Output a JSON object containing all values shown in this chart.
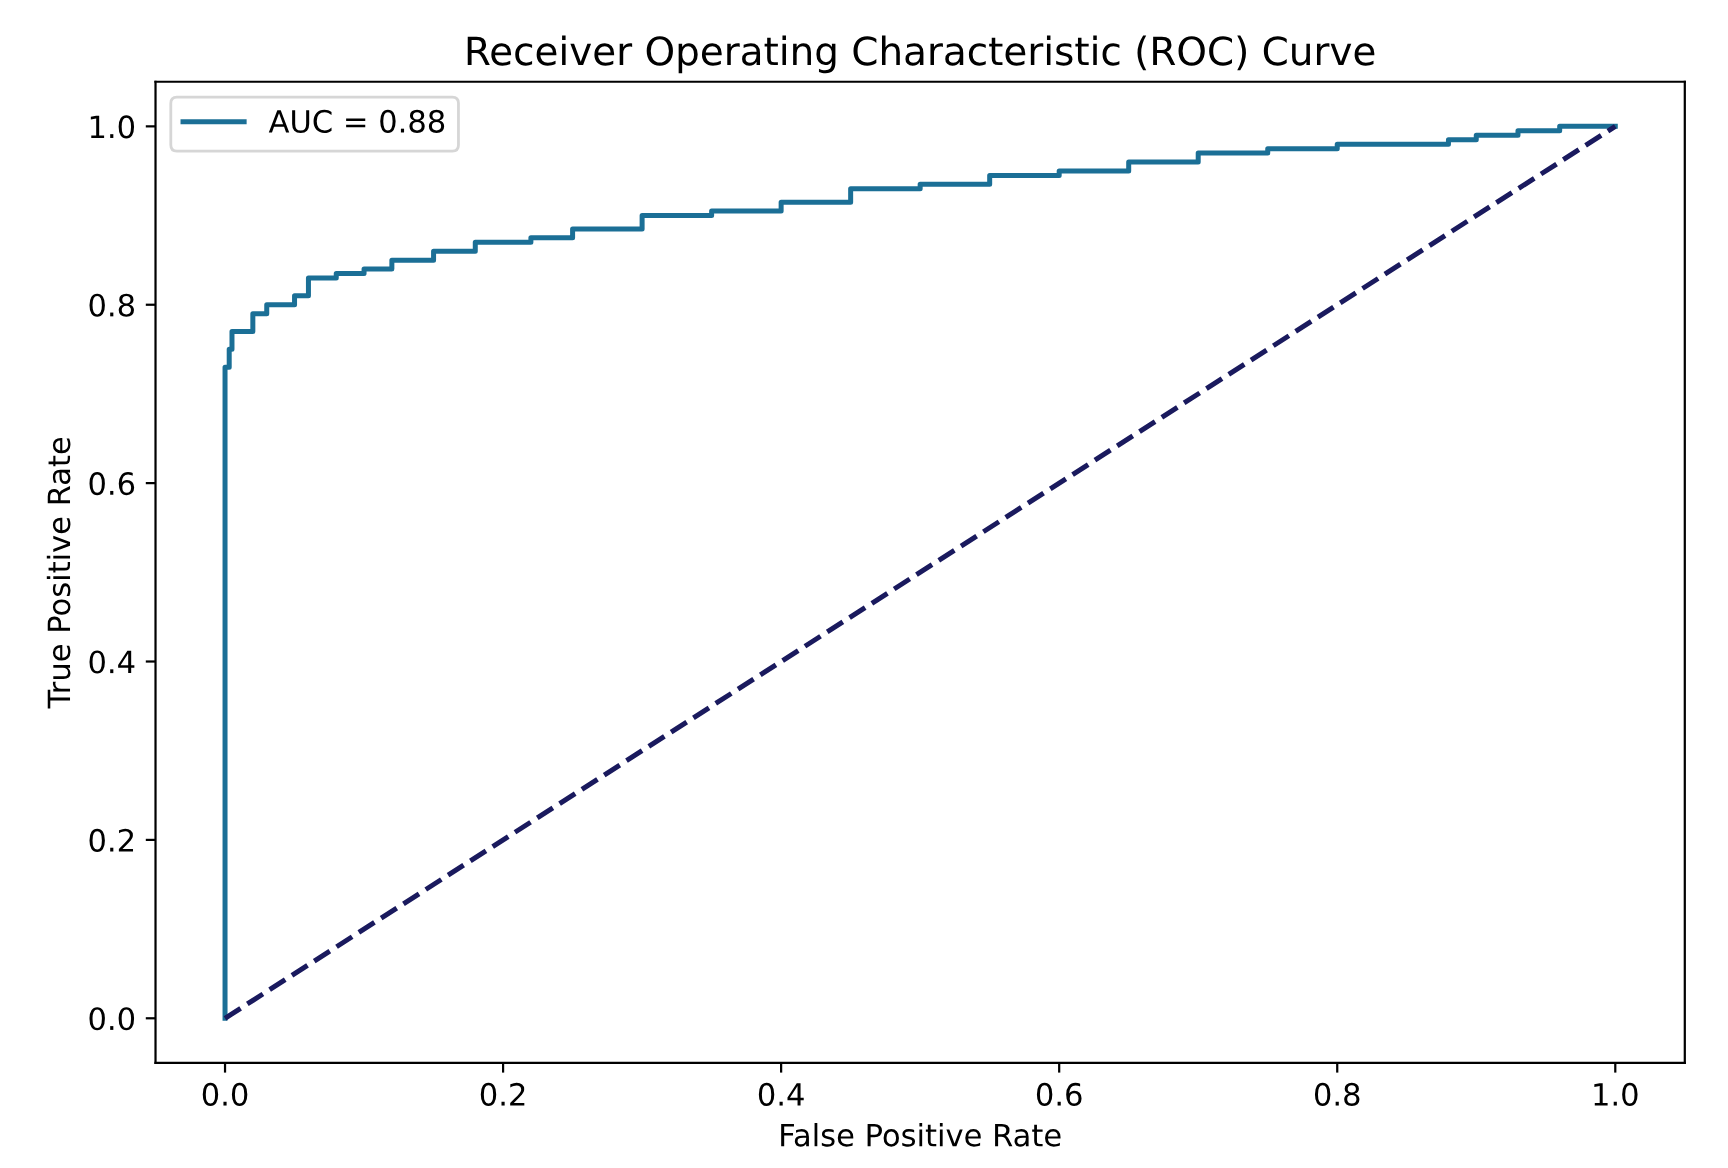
{
  "chart_data": {
    "type": "line",
    "title": "Receiver Operating Characteristic (ROC) Curve",
    "xlabel": "False Positive Rate",
    "ylabel": "True Positive Rate",
    "xlim": [
      -0.05,
      1.05
    ],
    "ylim": [
      -0.05,
      1.05
    ],
    "xticks": [
      {
        "value": 0,
        "label": "0.0"
      },
      0.2,
      0.4,
      0.6,
      0.8,
      {
        "value": 1,
        "label": "1.0"
      }
    ],
    "yticks": [
      {
        "value": 0,
        "label": "0.0"
      },
      0.2,
      0.4,
      0.6,
      0.8,
      {
        "value": 1,
        "label": "1.0"
      }
    ],
    "grid": false,
    "legend": "top left",
    "series": [
      {
        "name": "AUC = 0.88",
        "type": "step",
        "color": "#1b6f96",
        "line_style": "solid",
        "x": [
          0,
          0,
          0.003,
          0.005,
          0.02,
          0.03,
          0.05,
          0.06,
          0.08,
          0.1,
          0.12,
          0.15,
          0.18,
          0.22,
          0.25,
          0.3,
          0.35,
          0.4,
          0.45,
          0.5,
          0.55,
          0.6,
          0.65,
          0.7,
          0.75,
          0.8,
          0.88,
          0.9,
          0.93,
          0.96,
          1.0
        ],
        "values": [
          0,
          0.73,
          0.75,
          0.77,
          0.79,
          0.8,
          0.81,
          0.83,
          0.835,
          0.84,
          0.85,
          0.86,
          0.87,
          0.875,
          0.885,
          0.9,
          0.905,
          0.915,
          0.93,
          0.935,
          0.945,
          0.95,
          0.96,
          0.97,
          0.975,
          0.98,
          0.985,
          0.99,
          0.995,
          1.0,
          1.0
        ]
      },
      {
        "color": "#1a1a5e",
        "line_style": "dashed",
        "x": [
          0,
          1
        ],
        "values": [
          0,
          1
        ]
      }
    ]
  }
}
